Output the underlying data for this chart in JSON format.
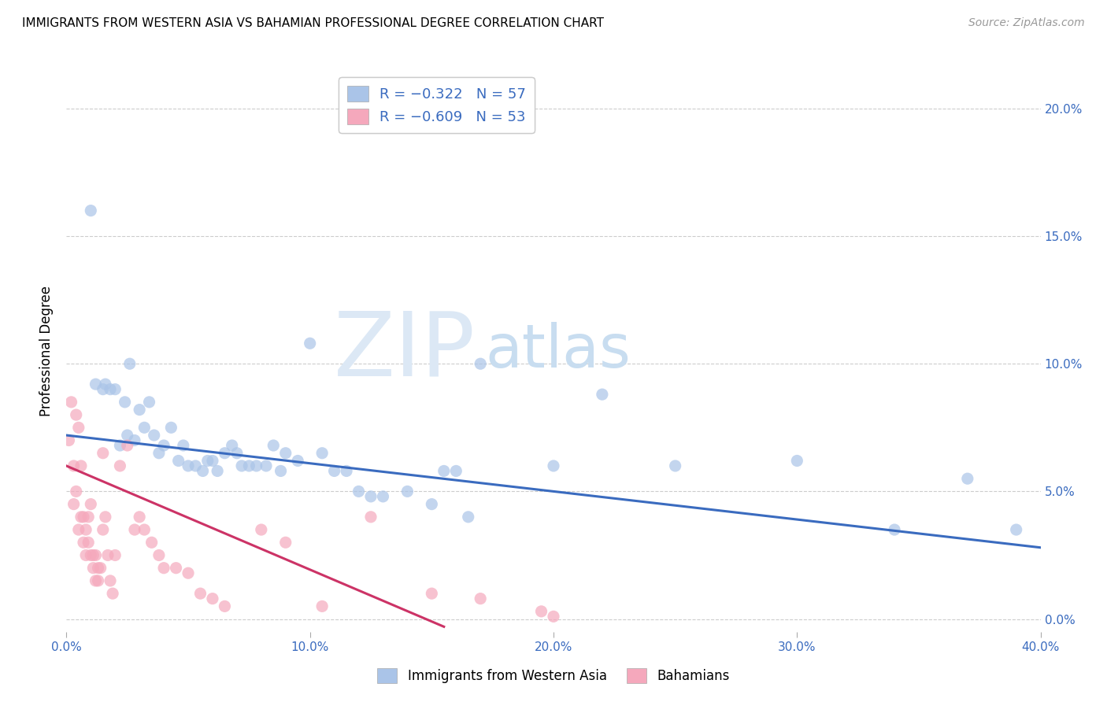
{
  "title": "IMMIGRANTS FROM WESTERN ASIA VS BAHAMIAN PROFESSIONAL DEGREE CORRELATION CHART",
  "source": "Source: ZipAtlas.com",
  "ylabel": "Professional Degree",
  "xlim": [
    0.0,
    0.4
  ],
  "ylim": [
    -0.005,
    0.215
  ],
  "xticks": [
    0.0,
    0.1,
    0.2,
    0.3,
    0.4
  ],
  "yticks": [
    0.0,
    0.05,
    0.1,
    0.15,
    0.2
  ],
  "background_color": "#ffffff",
  "grid_color": "#cccccc",
  "series1_color": "#aac4e8",
  "series2_color": "#f5a8bc",
  "line1_color": "#3a6bbf",
  "line2_color": "#cc3366",
  "series1_label": "Immigrants from Western Asia",
  "series2_label": "Bahamians",
  "blue_scatter_x": [
    0.01,
    0.012,
    0.015,
    0.016,
    0.018,
    0.02,
    0.022,
    0.024,
    0.025,
    0.026,
    0.028,
    0.03,
    0.032,
    0.034,
    0.036,
    0.038,
    0.04,
    0.043,
    0.046,
    0.048,
    0.05,
    0.053,
    0.056,
    0.058,
    0.06,
    0.062,
    0.065,
    0.068,
    0.07,
    0.072,
    0.075,
    0.078,
    0.082,
    0.085,
    0.088,
    0.09,
    0.095,
    0.1,
    0.105,
    0.11,
    0.115,
    0.12,
    0.125,
    0.13,
    0.14,
    0.15,
    0.155,
    0.16,
    0.165,
    0.17,
    0.2,
    0.22,
    0.25,
    0.3,
    0.34,
    0.37,
    0.39
  ],
  "blue_scatter_y": [
    0.16,
    0.092,
    0.09,
    0.092,
    0.09,
    0.09,
    0.068,
    0.085,
    0.072,
    0.1,
    0.07,
    0.082,
    0.075,
    0.085,
    0.072,
    0.065,
    0.068,
    0.075,
    0.062,
    0.068,
    0.06,
    0.06,
    0.058,
    0.062,
    0.062,
    0.058,
    0.065,
    0.068,
    0.065,
    0.06,
    0.06,
    0.06,
    0.06,
    0.068,
    0.058,
    0.065,
    0.062,
    0.108,
    0.065,
    0.058,
    0.058,
    0.05,
    0.048,
    0.048,
    0.05,
    0.045,
    0.058,
    0.058,
    0.04,
    0.1,
    0.06,
    0.088,
    0.06,
    0.062,
    0.035,
    0.055,
    0.035
  ],
  "pink_scatter_x": [
    0.001,
    0.002,
    0.003,
    0.003,
    0.004,
    0.004,
    0.005,
    0.005,
    0.006,
    0.006,
    0.007,
    0.007,
    0.008,
    0.008,
    0.009,
    0.009,
    0.01,
    0.01,
    0.011,
    0.011,
    0.012,
    0.012,
    0.013,
    0.013,
    0.014,
    0.015,
    0.015,
    0.016,
    0.017,
    0.018,
    0.019,
    0.02,
    0.022,
    0.025,
    0.028,
    0.03,
    0.032,
    0.035,
    0.038,
    0.04,
    0.045,
    0.05,
    0.055,
    0.06,
    0.065,
    0.08,
    0.09,
    0.105,
    0.125,
    0.15,
    0.17,
    0.195,
    0.2
  ],
  "pink_scatter_y": [
    0.07,
    0.085,
    0.06,
    0.045,
    0.05,
    0.08,
    0.075,
    0.035,
    0.06,
    0.04,
    0.04,
    0.03,
    0.035,
    0.025,
    0.04,
    0.03,
    0.045,
    0.025,
    0.025,
    0.02,
    0.015,
    0.025,
    0.02,
    0.015,
    0.02,
    0.035,
    0.065,
    0.04,
    0.025,
    0.015,
    0.01,
    0.025,
    0.06,
    0.068,
    0.035,
    0.04,
    0.035,
    0.03,
    0.025,
    0.02,
    0.02,
    0.018,
    0.01,
    0.008,
    0.005,
    0.035,
    0.03,
    0.005,
    0.04,
    0.01,
    0.008,
    0.003,
    0.001
  ],
  "blue_line_x": [
    0.0,
    0.4
  ],
  "blue_line_y": [
    0.072,
    0.028
  ],
  "pink_line_x": [
    0.0,
    0.155
  ],
  "pink_line_y": [
    0.06,
    -0.003
  ]
}
